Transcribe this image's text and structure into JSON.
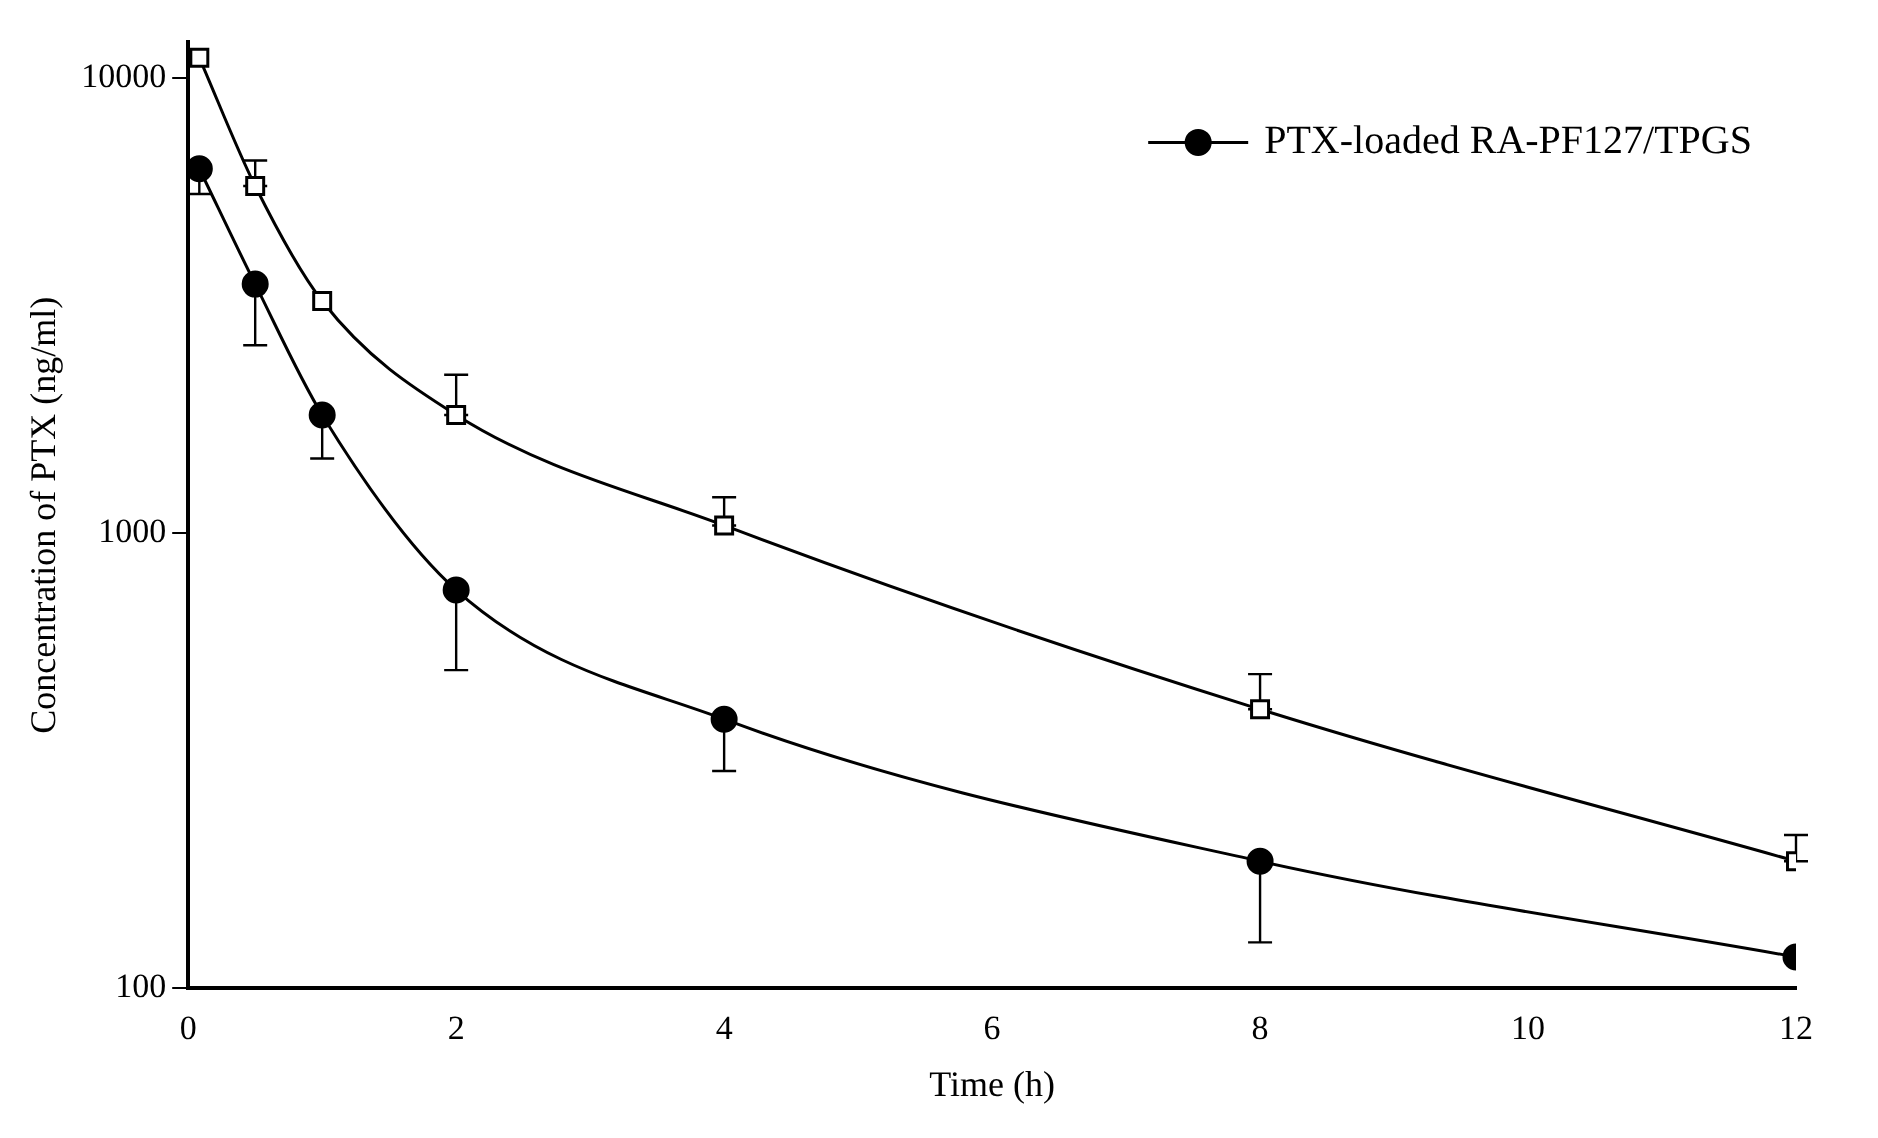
{
  "chart_data": {
    "type": "line",
    "xlabel": "Time (h)",
    "ylabel": "Concentration of PTX (ng/ml)",
    "log": "y",
    "xlim": [
      0,
      12
    ],
    "xticks": [
      0,
      2,
      4,
      6,
      8,
      10,
      12
    ],
    "ylim": [
      100,
      12000
    ],
    "yticks": [
      100,
      1000,
      10000
    ],
    "grid": false,
    "legend": "top right",
    "line_style": "solid",
    "series": [
      {
        "color": "#000000",
        "marker": "square",
        "x": [
          0.083,
          0.5,
          1,
          2,
          4,
          8,
          12
        ],
        "values": [
          11100,
          5800,
          3240,
          1820,
          1040,
          410,
          190
        ],
        "errors": [
          null,
          [
            5800,
            6600
          ],
          null,
          [
            1820,
            2230
          ],
          [
            1040,
            1200
          ],
          [
            410,
            490
          ],
          [
            190,
            217
          ]
        ]
      },
      {
        "name": "PTX-loaded RA-PF127/TPGS",
        "color": "#000000",
        "marker": "circle",
        "x": [
          0.083,
          0.5,
          1,
          2,
          4,
          8,
          12
        ],
        "values": [
          6330,
          3530,
          1820,
          750,
          390,
          190,
          117
        ],
        "errors": [
          [
            5570,
            6330
          ],
          [
            2590,
            3530
          ],
          [
            1460,
            1820
          ],
          [
            500,
            750
          ],
          [
            300,
            390
          ],
          [
            126,
            190
          ],
          null
        ]
      }
    ]
  }
}
